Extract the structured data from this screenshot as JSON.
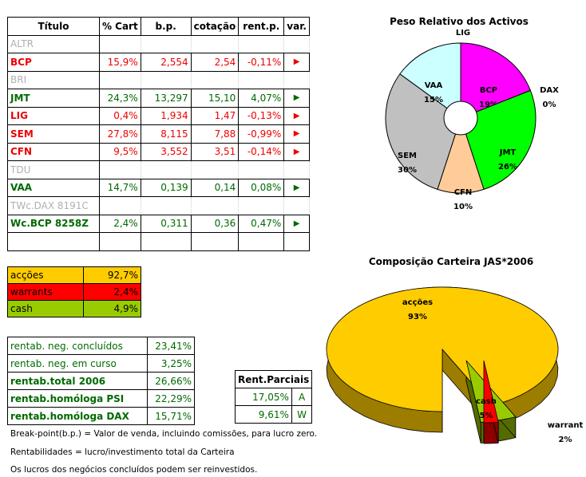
{
  "table": {
    "headers": [
      "Título",
      "% Cart",
      "b.p.",
      "cotação",
      "rent.p.",
      "var."
    ],
    "rows": [
      {
        "ticker": "ALTR",
        "cart": "",
        "bp": "",
        "cot": "",
        "rent": "",
        "arrow": "",
        "style": "grey"
      },
      {
        "ticker": "BCP",
        "cart": "15,9%",
        "bp": "2,554",
        "cot": "2,54",
        "rent": "-0,11%",
        "arrow": "▶",
        "style": "red"
      },
      {
        "ticker": "BRI",
        "cart": "",
        "bp": "",
        "cot": "",
        "rent": "",
        "arrow": "",
        "style": "grey"
      },
      {
        "ticker": "JMT",
        "cart": "24,3%",
        "bp": "13,297",
        "cot": "15,10",
        "rent": "4,07%",
        "arrow": "▶",
        "style": "green"
      },
      {
        "ticker": "LIG",
        "cart": "0,4%",
        "bp": "1,934",
        "cot": "1,47",
        "rent": "-0,13%",
        "arrow": "▶",
        "style": "red"
      },
      {
        "ticker": "SEM",
        "cart": "27,8%",
        "bp": "8,115",
        "cot": "7,88",
        "rent": "-0,99%",
        "arrow": "▶",
        "style": "red"
      },
      {
        "ticker": "CFN",
        "cart": "9,5%",
        "bp": "3,552",
        "cot": "3,51",
        "rent": "-0,14%",
        "arrow": "▶",
        "style": "red"
      },
      {
        "ticker": "TDU",
        "cart": "",
        "bp": "",
        "cot": "",
        "rent": "",
        "arrow": "",
        "style": "grey"
      },
      {
        "ticker": "VAA",
        "cart": "14,7%",
        "bp": "0,139",
        "cot": "0,14",
        "rent": "0,08%",
        "arrow": "▶",
        "style": "green"
      },
      {
        "ticker": "TWc.DAX 8191C",
        "cart": "",
        "bp": "",
        "cot": "",
        "rent": "",
        "arrow": "",
        "style": "grey"
      },
      {
        "ticker": "Wc.BCP 8258Z",
        "cart": "2,4%",
        "bp": "0,311",
        "cot": "0,36",
        "rent": "0,47%",
        "arrow": "▶",
        "style": "green"
      },
      {
        "ticker": "",
        "cart": "",
        "bp": "",
        "cot": "",
        "rent": "",
        "arrow": "",
        "style": "plain"
      }
    ]
  },
  "allocation": [
    {
      "label": "acções",
      "value": "92,7%",
      "bg": "#ffcc00"
    },
    {
      "label": "warrants",
      "value": "2,4%",
      "bg": "#ff0000"
    },
    {
      "label": "cash",
      "value": "4,9%",
      "bg": "#99cc00"
    }
  ],
  "returns": [
    {
      "label": "rentab. neg. concluídos",
      "value": "23,41%",
      "bold": false
    },
    {
      "label": "rentab. neg. em curso",
      "value": "3,25%",
      "bold": false
    },
    {
      "label": "rentab.total 2006",
      "value": "26,66%",
      "bold": true
    },
    {
      "label": "rentab.homóloga PSI",
      "value": "22,29%",
      "bold": true
    },
    {
      "label": "rentab.homóloga DAX",
      "value": "15,71%",
      "bold": true
    }
  ],
  "partials": {
    "header": "Rent.Parciais",
    "rows": [
      {
        "value": "17,05%",
        "mark": "A"
      },
      {
        "value": "9,61%",
        "mark": "W"
      }
    ]
  },
  "notes": [
    "Break-point(b.p.) = Valor de venda, incluindo comissões, para lucro zero.",
    "Rentabilidades = lucro/investimento total da Carteira",
    "Os lucros dos negócios concluídos podem ser reinvestidos."
  ],
  "chart_data": [
    {
      "type": "pie",
      "title": "Peso Relativo dos Activos",
      "series": [
        {
          "label": "LIG",
          "value": 0,
          "display": "0%",
          "color": "#ffffff"
        },
        {
          "label": "BCP",
          "value": 19,
          "display": "19%",
          "color": "#ff00ff"
        },
        {
          "label": "DAX",
          "value": 0,
          "display": "0%",
          "color": "#0000ff"
        },
        {
          "label": "JMT",
          "value": 26,
          "display": "26%",
          "color": "#00ff00"
        },
        {
          "label": "CFN",
          "value": 10,
          "display": "10%",
          "color": "#ffcc99"
        },
        {
          "label": "SEM",
          "value": 30,
          "display": "30%",
          "color": "#c0c0c0"
        },
        {
          "label": "VAA",
          "value": 15,
          "display": "15%",
          "color": "#ccffff"
        }
      ],
      "donut": true
    },
    {
      "type": "pie",
      "title": "Composição Carteira JAS*2006",
      "series": [
        {
          "label": "acções",
          "value": 93,
          "display": "93%",
          "color": "#ffcc00"
        },
        {
          "label": "cash",
          "value": 5,
          "display": "5%",
          "color": "#99cc00"
        },
        {
          "label": "warrant",
          "value": 2,
          "display": "2%",
          "color": "#ff0000"
        }
      ],
      "style": "3d-exploded"
    }
  ]
}
